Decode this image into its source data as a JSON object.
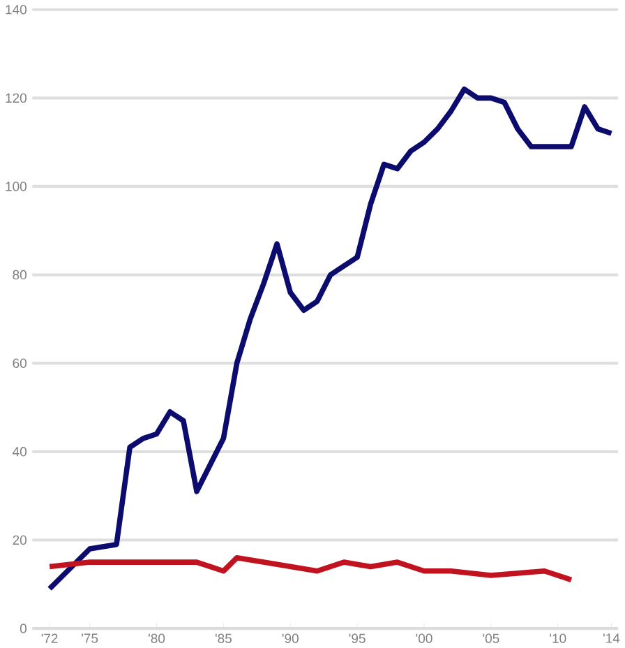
{
  "chart_data": {
    "type": "line",
    "xlim": [
      1970.7,
      2014.5
    ],
    "ylim": [
      0,
      140
    ],
    "yticks": [
      0,
      20,
      40,
      60,
      80,
      100,
      120,
      140
    ],
    "xticks": [
      {
        "value": 1972,
        "label": "'72"
      },
      {
        "value": 1975,
        "label": "'75"
      },
      {
        "value": 1980,
        "label": "'80"
      },
      {
        "value": 1985,
        "label": "'85"
      },
      {
        "value": 1990,
        "label": "'90"
      },
      {
        "value": 1995,
        "label": "'95"
      },
      {
        "value": 2000,
        "label": "'00"
      },
      {
        "value": 2005,
        "label": "'05"
      },
      {
        "value": 2010,
        "label": "'10"
      },
      {
        "value": 2014,
        "label": "'14"
      }
    ],
    "grid": "y",
    "marker": "none",
    "line_style": "solid",
    "series": [
      {
        "color": "#0c0c6e",
        "x": [
          1972,
          1975,
          1977,
          1978,
          1979,
          1980,
          1981,
          1982,
          1983,
          1984,
          1985,
          1986,
          1987,
          1988,
          1989,
          1990,
          1991,
          1992,
          1993,
          1994,
          1995,
          1996,
          1997,
          1998,
          1999,
          2000,
          2001,
          2002,
          2003,
          2004,
          2005,
          2006,
          2007,
          2008,
          2009,
          2010,
          2011,
          2012,
          2013,
          2014
        ],
        "values": [
          9,
          18,
          19,
          41,
          43,
          44,
          49,
          47,
          31,
          37,
          43,
          60,
          70,
          78,
          87,
          76,
          72,
          74,
          80,
          82,
          84,
          96,
          105,
          104,
          108,
          110,
          113,
          117,
          122,
          120,
          120,
          119,
          113,
          109,
          109,
          109,
          109,
          118,
          113,
          112
        ]
      },
      {
        "color": "#c0121f",
        "x": [
          1972,
          1975,
          1977,
          1980,
          1983,
          1984,
          1985,
          1986,
          1988,
          1990,
          1992,
          1994,
          1996,
          1998,
          2000,
          2002,
          2005,
          2009,
          2011
        ],
        "values": [
          14,
          15,
          15,
          15,
          15,
          14,
          13,
          16,
          15,
          14,
          13,
          15,
          14,
          15,
          13,
          13,
          12,
          13,
          11
        ]
      }
    ]
  }
}
